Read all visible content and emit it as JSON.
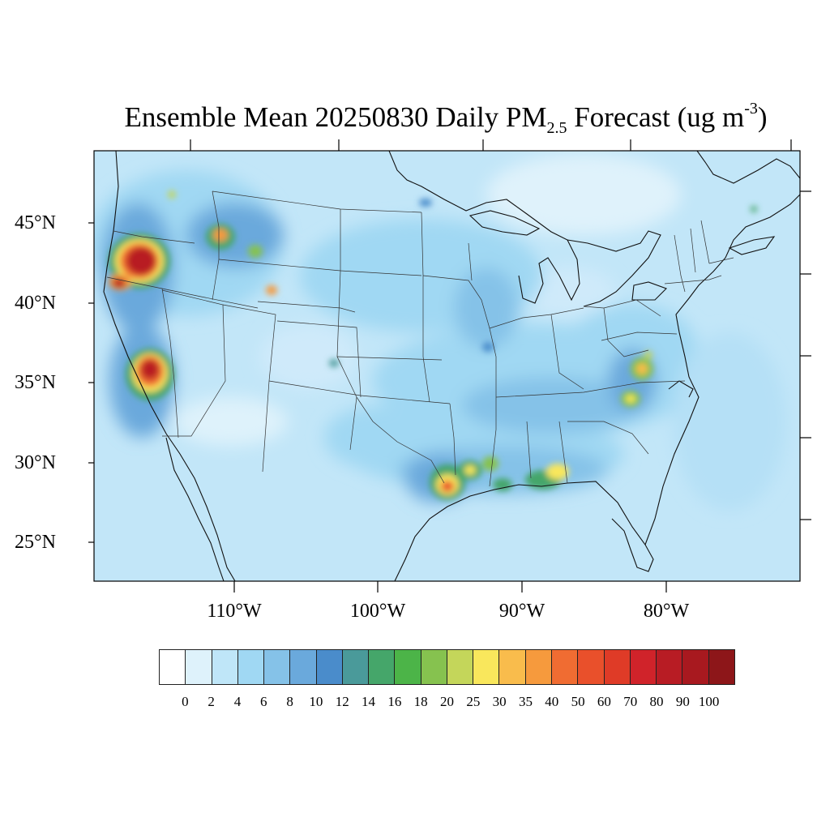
{
  "title": {
    "main": "Ensemble Mean 20250830 Daily PM",
    "sub": "2.5",
    "unit_pre": " Forecast (ug m",
    "sup": "-3",
    "unit_post": ")"
  },
  "map": {
    "lat_labels": [
      "45°N",
      "40°N",
      "35°N",
      "30°N",
      "25°N"
    ],
    "lon_labels": [
      "110°W",
      "100°W",
      "90°W",
      "80°W"
    ],
    "background_color": "#c2e6f8"
  },
  "colorbar": {
    "labels": [
      "0",
      "2",
      "4",
      "6",
      "8",
      "10",
      "12",
      "14",
      "16",
      "18",
      "20",
      "25",
      "30",
      "35",
      "40",
      "50",
      "60",
      "70",
      "80",
      "90",
      "100"
    ],
    "colors": [
      "#ffffff",
      "#def2fb",
      "#bfe6f8",
      "#a0d8f3",
      "#85c2e8",
      "#6aa9dc",
      "#4a8ccb",
      "#4a9a9a",
      "#45a66a",
      "#4cb448",
      "#86c24f",
      "#c4d65a",
      "#f9e75c",
      "#f9bc4c",
      "#f69a3d",
      "#f06c32",
      "#e9502b",
      "#df3b27",
      "#d0232a",
      "#b81c24",
      "#a8191f",
      "#8d1619"
    ]
  }
}
